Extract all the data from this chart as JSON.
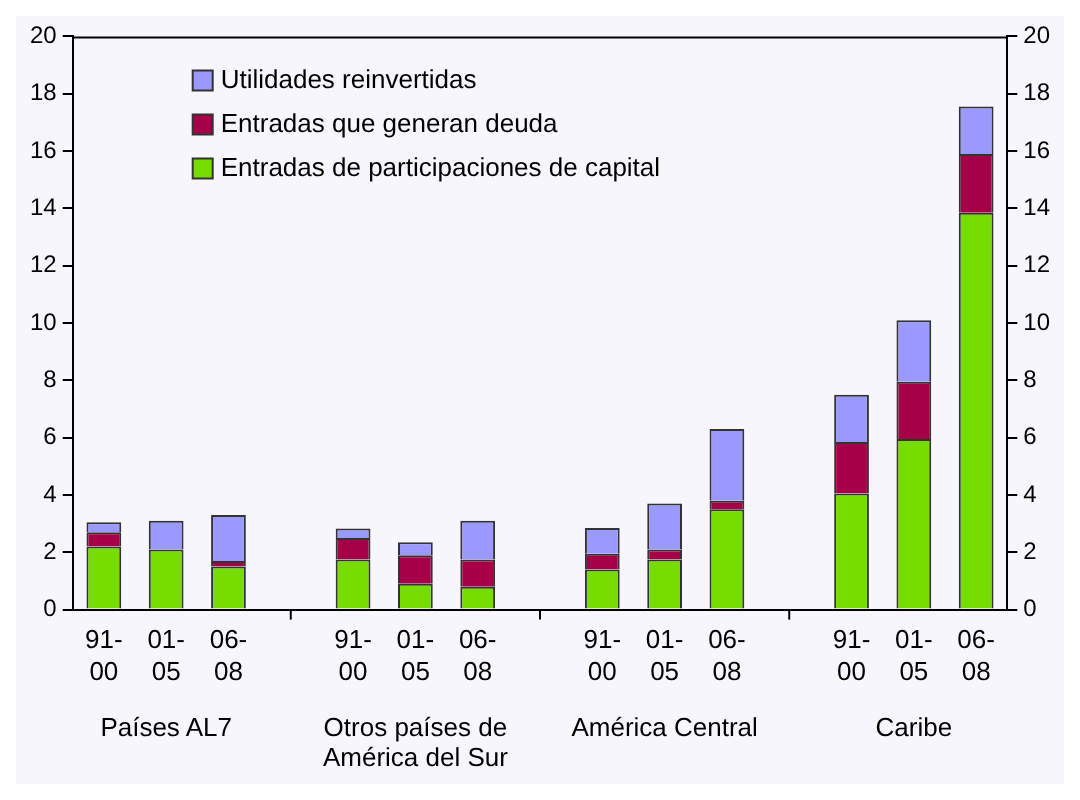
{
  "chart_data": {
    "type": "bar",
    "stacked": true,
    "categories": [
      "91-00",
      "01-05",
      "06-08",
      null,
      "91-00",
      "01-05",
      "06-08",
      null,
      "91-00",
      "01-05",
      "06-08",
      null,
      "91-00",
      "01-05",
      "06-08"
    ],
    "series": [
      {
        "name": "Entradas de participaciones de capital",
        "color": "#77dd00",
        "values": [
          2.2,
          2.1,
          1.5,
          null,
          1.75,
          0.9,
          0.8,
          null,
          1.4,
          1.75,
          3.5,
          null,
          4.05,
          5.95,
          13.85
        ]
      },
      {
        "name": "Entradas que generan deuda",
        "color": "#a50048",
        "values": [
          0.5,
          0,
          0.2,
          null,
          0.75,
          1.0,
          0.95,
          null,
          0.55,
          0.35,
          0.3,
          null,
          1.8,
          2.0,
          2.05
        ]
      },
      {
        "name": "Utilidades reinvertidas",
        "color": "#9999ff",
        "values": [
          0.35,
          1.0,
          1.6,
          null,
          0.33,
          0.45,
          1.35,
          null,
          0.9,
          1.6,
          2.5,
          null,
          1.65,
          2.15,
          1.65
        ]
      }
    ],
    "annotations": [
      "Países AL7",
      "Otros países de América del Sur",
      "América Central",
      "Caribe"
    ],
    "ylim": [
      0,
      20
    ],
    "yticks": [
      0,
      2,
      4,
      6,
      8,
      10,
      12,
      14,
      16,
      18,
      20
    ],
    "y2lim": [
      0,
      20
    ],
    "y2ticks": [
      0,
      2,
      4,
      6,
      8,
      10,
      12,
      14,
      16,
      18,
      20
    ],
    "grid": false,
    "legend": "top left"
  }
}
